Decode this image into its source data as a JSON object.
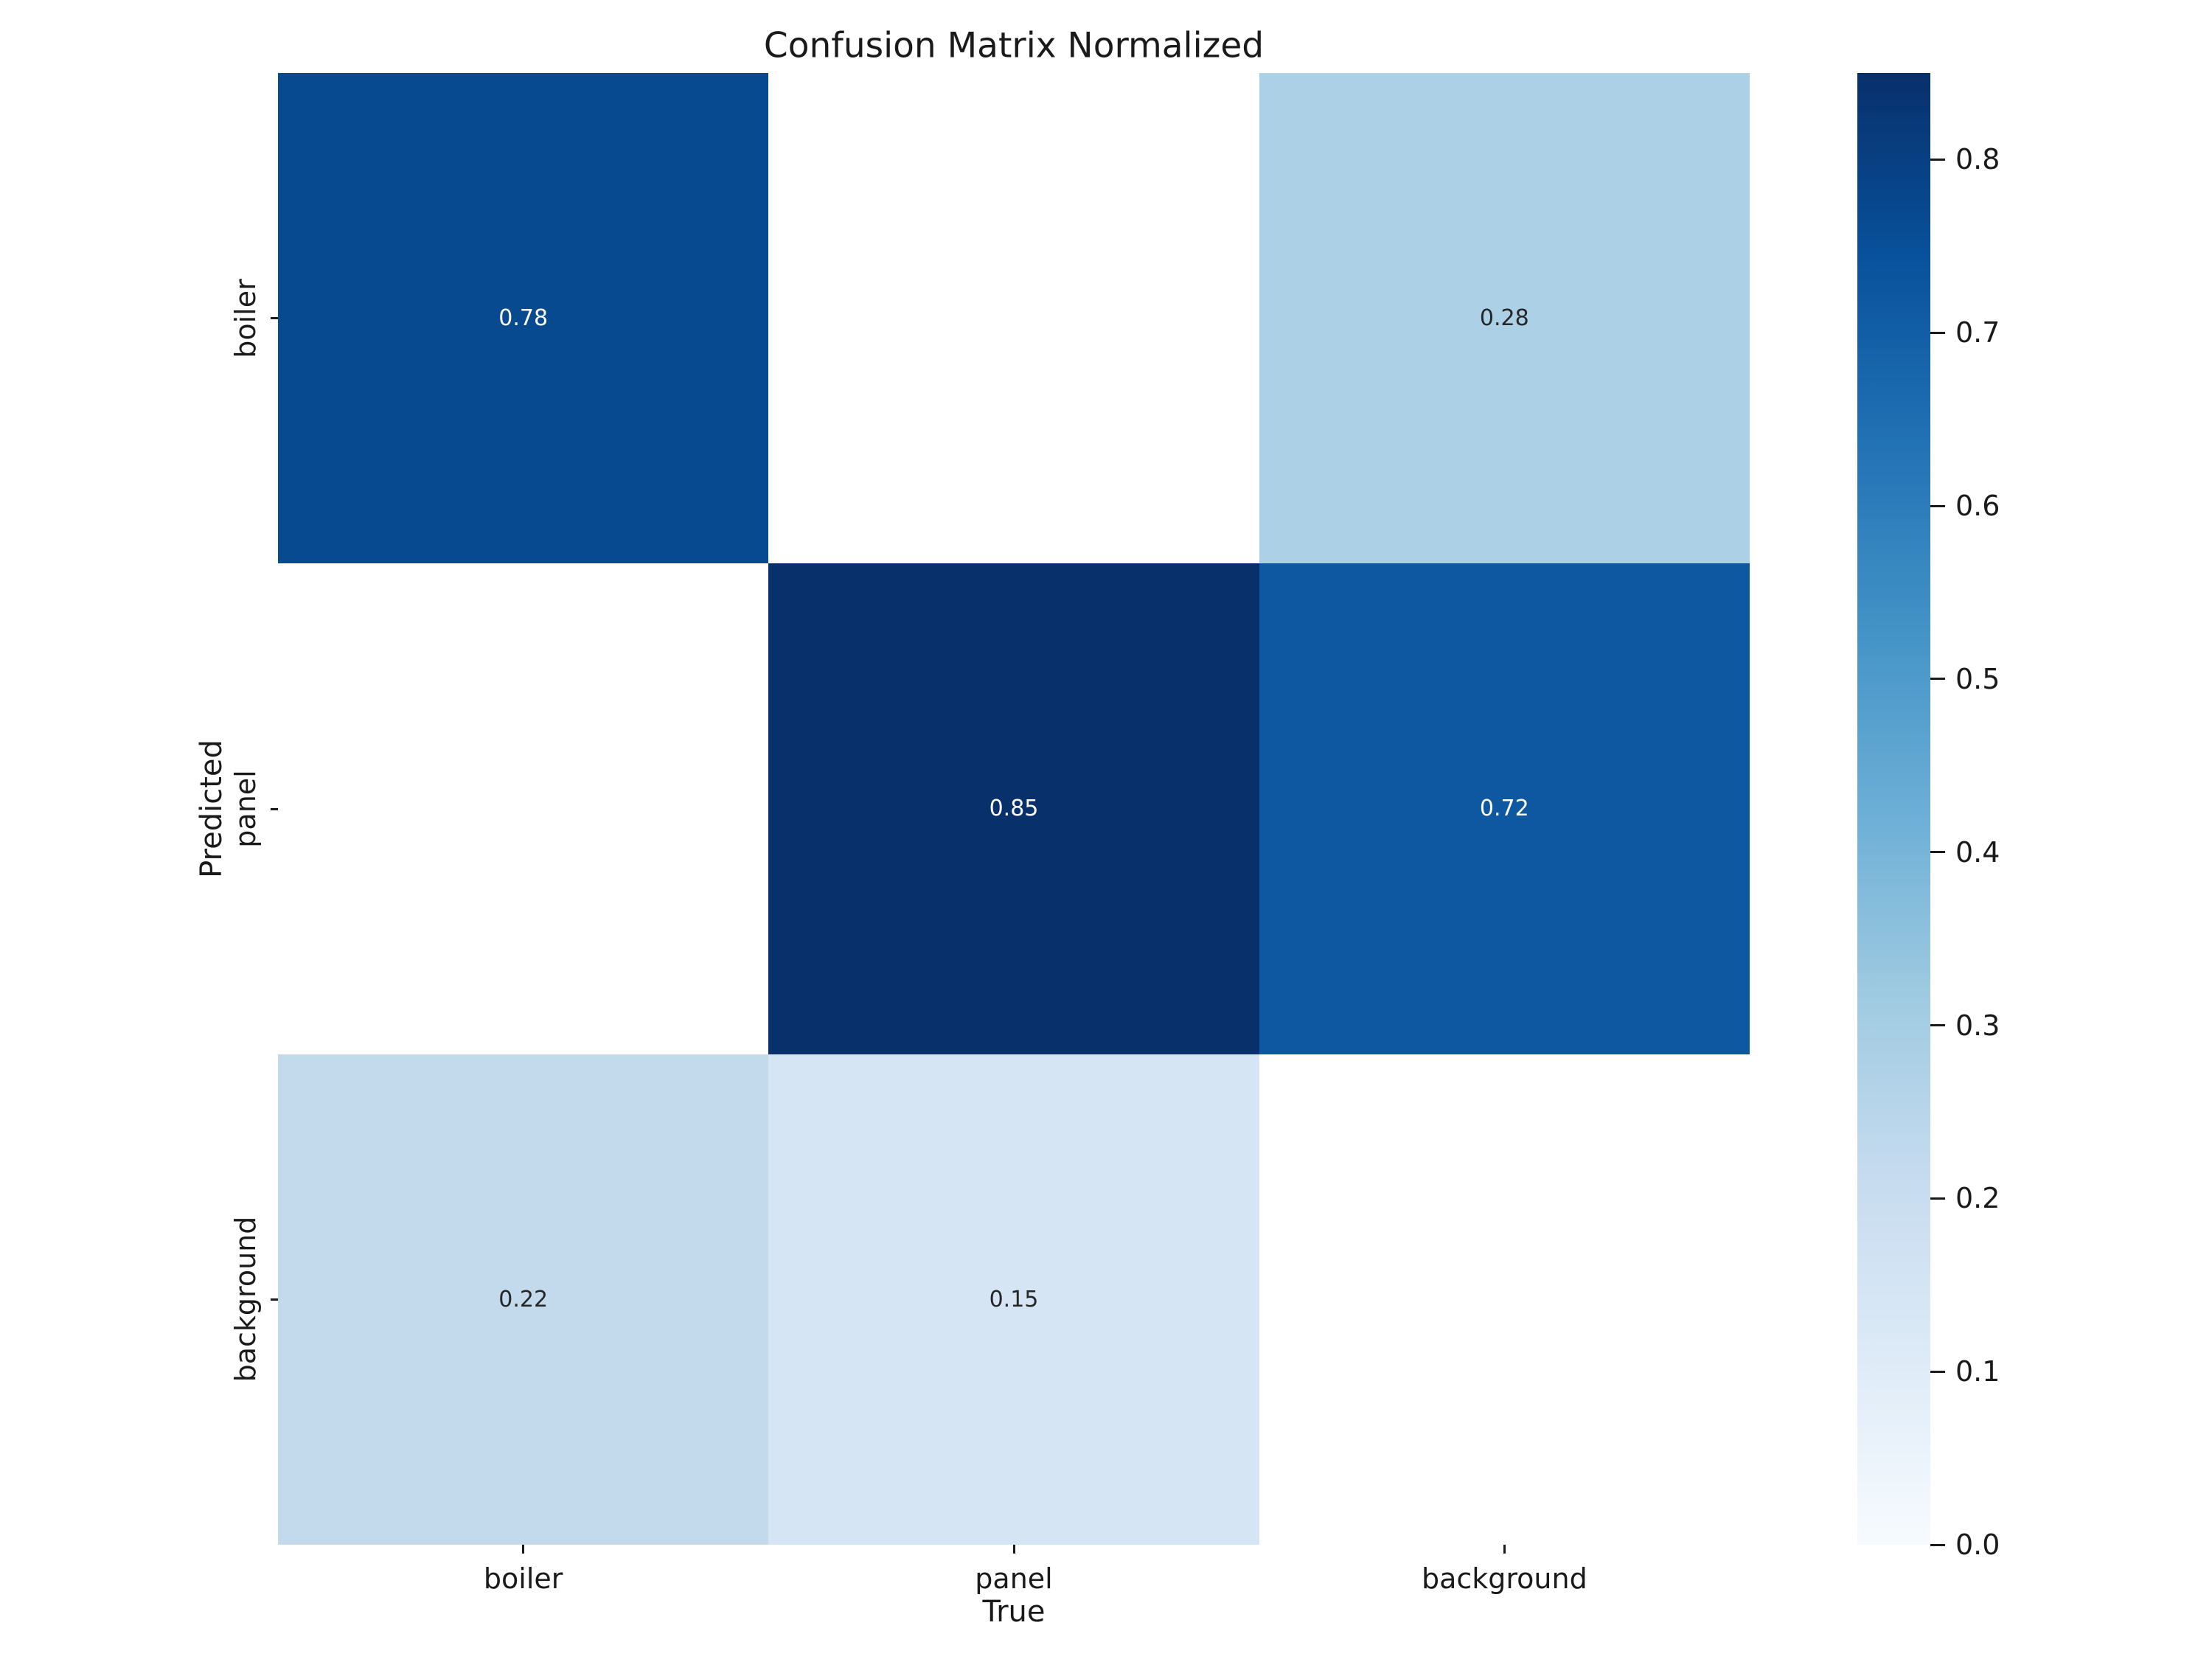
{
  "title": "Confusion Matrix Normalized",
  "chart_data": {
    "type": "heatmap",
    "title": "Confusion Matrix Normalized",
    "xlabel": "True",
    "ylabel": "Predicted",
    "x_categories": [
      "boiler",
      "panel",
      "background"
    ],
    "y_categories": [
      "boiler",
      "panel",
      "background"
    ],
    "matrix": [
      [
        0.78,
        null,
        0.28
      ],
      [
        null,
        0.85,
        0.72
      ],
      [
        0.22,
        0.15,
        null
      ]
    ],
    "cell_labels": [
      [
        "0.78",
        "",
        "0.28"
      ],
      [
        "",
        "0.85",
        "0.72"
      ],
      [
        "0.22",
        "0.15",
        ""
      ]
    ],
    "cell_colors": [
      [
        "#084a8f",
        "#ffffff",
        "#acd0e5"
      ],
      [
        "#ffffff",
        "#08306b",
        "#0e57a1"
      ],
      [
        "#c3daec",
        "#d5e5f4",
        "#ffffff"
      ]
    ],
    "cell_text_colors": [
      [
        "#ffffff",
        "#262626",
        "#262626"
      ],
      [
        "#ffffff",
        "#ffffff",
        "#ffffff"
      ],
      [
        "#262626",
        "#262626",
        "#262626"
      ]
    ],
    "vmin": 0.0,
    "vmax": 0.85,
    "colormap": "Blues",
    "grid": false,
    "colorbar": {
      "position": "right",
      "tick_values": [
        0.0,
        0.1,
        0.2,
        0.3,
        0.4,
        0.5,
        0.6,
        0.7,
        0.8
      ],
      "tick_labels": [
        "0.0",
        "0.1",
        "0.2",
        "0.3",
        "0.4",
        "0.5",
        "0.6",
        "0.7",
        "0.8"
      ],
      "gradient_stops_bottom_to_top": [
        "#f7fbff",
        "#deebf7",
        "#c6dbef",
        "#9ecae1",
        "#6baed6",
        "#4292c6",
        "#2171b5",
        "#08519c",
        "#08306b"
      ]
    }
  }
}
